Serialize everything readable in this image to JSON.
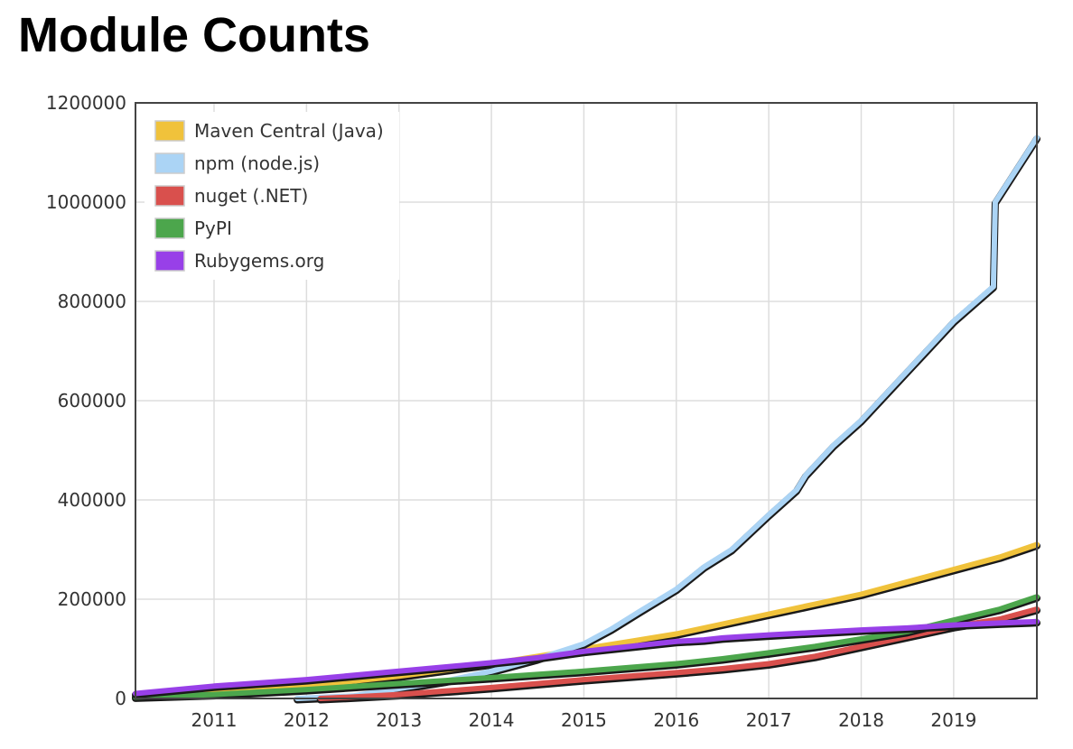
{
  "title": "Module Counts",
  "chart_data": {
    "type": "line",
    "title": "Module Counts",
    "xlabel": "",
    "ylabel": "",
    "xlim": [
      2010.15,
      2019.9
    ],
    "ylim": [
      0,
      1200000
    ],
    "x_ticks": [
      2011,
      2012,
      2013,
      2014,
      2015,
      2016,
      2017,
      2018,
      2019
    ],
    "y_ticks": [
      0,
      200000,
      400000,
      600000,
      800000,
      1000000,
      1200000
    ],
    "grid": true,
    "legend_position": "top-left",
    "series": [
      {
        "name": "Maven Central (Java)",
        "color": "#f0c23b",
        "points": [
          [
            2010.15,
            5000
          ],
          [
            2011,
            12000
          ],
          [
            2012,
            25000
          ],
          [
            2013,
            45000
          ],
          [
            2014,
            70000
          ],
          [
            2014.5,
            85000
          ],
          [
            2015,
            100000
          ],
          [
            2015.5,
            115000
          ],
          [
            2016,
            130000
          ],
          [
            2016.5,
            150000
          ],
          [
            2017,
            170000
          ],
          [
            2017.5,
            190000
          ],
          [
            2018,
            210000
          ],
          [
            2018.5,
            235000
          ],
          [
            2019,
            260000
          ],
          [
            2019.5,
            285000
          ],
          [
            2019.9,
            310000
          ]
        ]
      },
      {
        "name": "npm (node.js)",
        "color": "#abd4f5",
        "points": [
          [
            2011.9,
            0
          ],
          [
            2012.5,
            5000
          ],
          [
            2013,
            20000
          ],
          [
            2013.5,
            35000
          ],
          [
            2014,
            55000
          ],
          [
            2014.5,
            80000
          ],
          [
            2015,
            110000
          ],
          [
            2015.3,
            140000
          ],
          [
            2015.6,
            175000
          ],
          [
            2016,
            220000
          ],
          [
            2016.3,
            265000
          ],
          [
            2016.6,
            300000
          ],
          [
            2017,
            370000
          ],
          [
            2017.3,
            420000
          ],
          [
            2017.4,
            450000
          ],
          [
            2017.7,
            510000
          ],
          [
            2018,
            560000
          ],
          [
            2018.3,
            620000
          ],
          [
            2018.7,
            700000
          ],
          [
            2019,
            760000
          ],
          [
            2019.43,
            830000
          ],
          [
            2019.45,
            1000000
          ],
          [
            2019.9,
            1130000
          ]
        ]
      },
      {
        "name": "nuget (.NET)",
        "color": "#d9504d",
        "points": [
          [
            2012.15,
            0
          ],
          [
            2012.5,
            3000
          ],
          [
            2013,
            8000
          ],
          [
            2013.5,
            15000
          ],
          [
            2014,
            22000
          ],
          [
            2014.5,
            30000
          ],
          [
            2015,
            38000
          ],
          [
            2015.5,
            45000
          ],
          [
            2016,
            52000
          ],
          [
            2016.5,
            60000
          ],
          [
            2017,
            70000
          ],
          [
            2017.5,
            85000
          ],
          [
            2018,
            105000
          ],
          [
            2018.5,
            125000
          ],
          [
            2019,
            145000
          ],
          [
            2019.5,
            160000
          ],
          [
            2019.9,
            180000
          ]
        ]
      },
      {
        "name": "PyPI",
        "color": "#4ca64c",
        "points": [
          [
            2010.15,
            3000
          ],
          [
            2011,
            8000
          ],
          [
            2012,
            18000
          ],
          [
            2013,
            30000
          ],
          [
            2014,
            42000
          ],
          [
            2015,
            55000
          ],
          [
            2016,
            70000
          ],
          [
            2016.5,
            80000
          ],
          [
            2017,
            92000
          ],
          [
            2017.5,
            105000
          ],
          [
            2018,
            120000
          ],
          [
            2018.5,
            135000
          ],
          [
            2019,
            158000
          ],
          [
            2019.5,
            180000
          ],
          [
            2019.9,
            205000
          ]
        ]
      },
      {
        "name": "Rubygems.org",
        "color": "#9840e8",
        "points": [
          [
            2010.15,
            10000
          ],
          [
            2011,
            25000
          ],
          [
            2012,
            38000
          ],
          [
            2013,
            55000
          ],
          [
            2014,
            72000
          ],
          [
            2014.5,
            82000
          ],
          [
            2015,
            95000
          ],
          [
            2015.5,
            105000
          ],
          [
            2016,
            115000
          ],
          [
            2016.3,
            118000
          ],
          [
            2016.5,
            122000
          ],
          [
            2017,
            128000
          ],
          [
            2017.5,
            133000
          ],
          [
            2018,
            138000
          ],
          [
            2018.5,
            142000
          ],
          [
            2019,
            148000
          ],
          [
            2019.5,
            152000
          ],
          [
            2019.9,
            155000
          ]
        ]
      }
    ]
  }
}
